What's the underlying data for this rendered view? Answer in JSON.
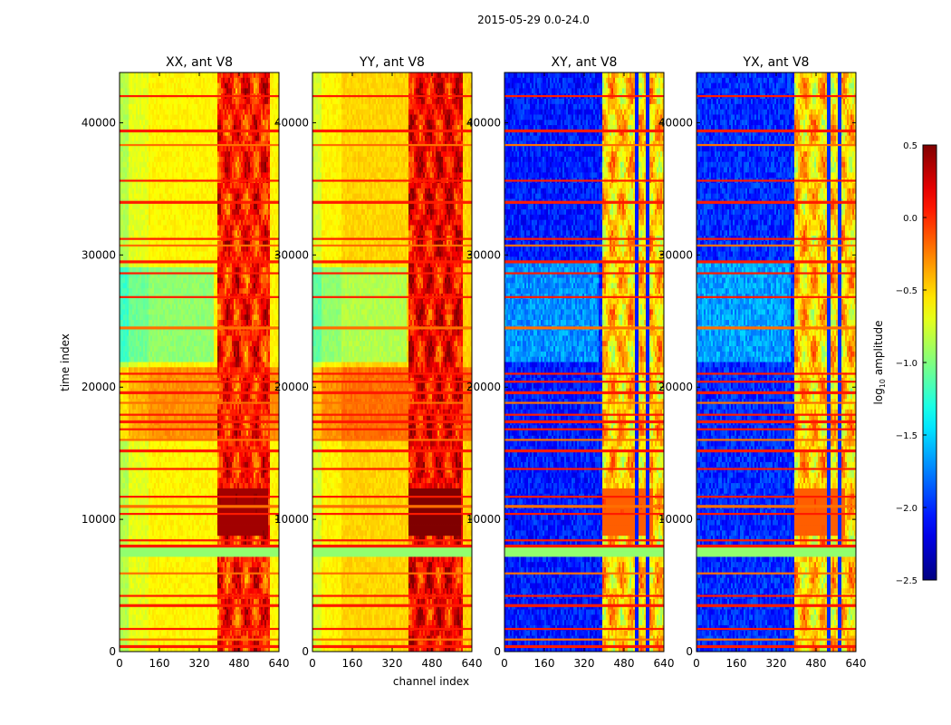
{
  "chart_data": {
    "type": "heatmap",
    "suptitle": "2015-05-29 0.0-24.0",
    "xlabel": "channel index",
    "ylabel": "time index",
    "xlim": [
      0,
      640
    ],
    "ylim": [
      0,
      43800
    ],
    "xticks": [
      "0",
      "160",
      "320",
      "480",
      "640"
    ],
    "yticks": [
      "0",
      "10000",
      "20000",
      "30000",
      "40000"
    ],
    "panels": [
      {
        "title": "XX, ant V8",
        "pol": "parallel",
        "base": -0.6,
        "bright": [
          390,
          600
        ],
        "bright_level": 0.05
      },
      {
        "title": "YY, ant V8",
        "pol": "parallel",
        "base": -0.5,
        "bright": [
          385,
          600
        ],
        "bright_level": 0.15
      },
      {
        "title": "XY, ant V8",
        "pol": "cross",
        "base": -2.05,
        "bright": [
          395,
          640
        ],
        "bright_level": -0.5
      },
      {
        "title": "YX, ant V8",
        "pol": "cross",
        "base": -2.0,
        "bright": [
          395,
          640
        ],
        "bright_level": -0.5
      }
    ],
    "flagged_time_rows": [
      400,
      900,
      1700,
      3500,
      4200,
      5900,
      8000,
      8400,
      10400,
      11000,
      11700,
      13800,
      15200,
      16000,
      16800,
      17400,
      17900,
      18800,
      19600,
      20400,
      21000,
      24500,
      26800,
      28600,
      29500,
      30700,
      31200,
      34000,
      35600,
      38300,
      39400,
      42000
    ],
    "colorbar": {
      "label": "log10 amplitude",
      "vmin": -2.5,
      "vmax": 0.5,
      "ticks": [
        "0.5",
        "0.0",
        "−0.5",
        "−1.0",
        "−1.5",
        "−2.0",
        "−2.5"
      ],
      "colormap": "jet"
    }
  }
}
